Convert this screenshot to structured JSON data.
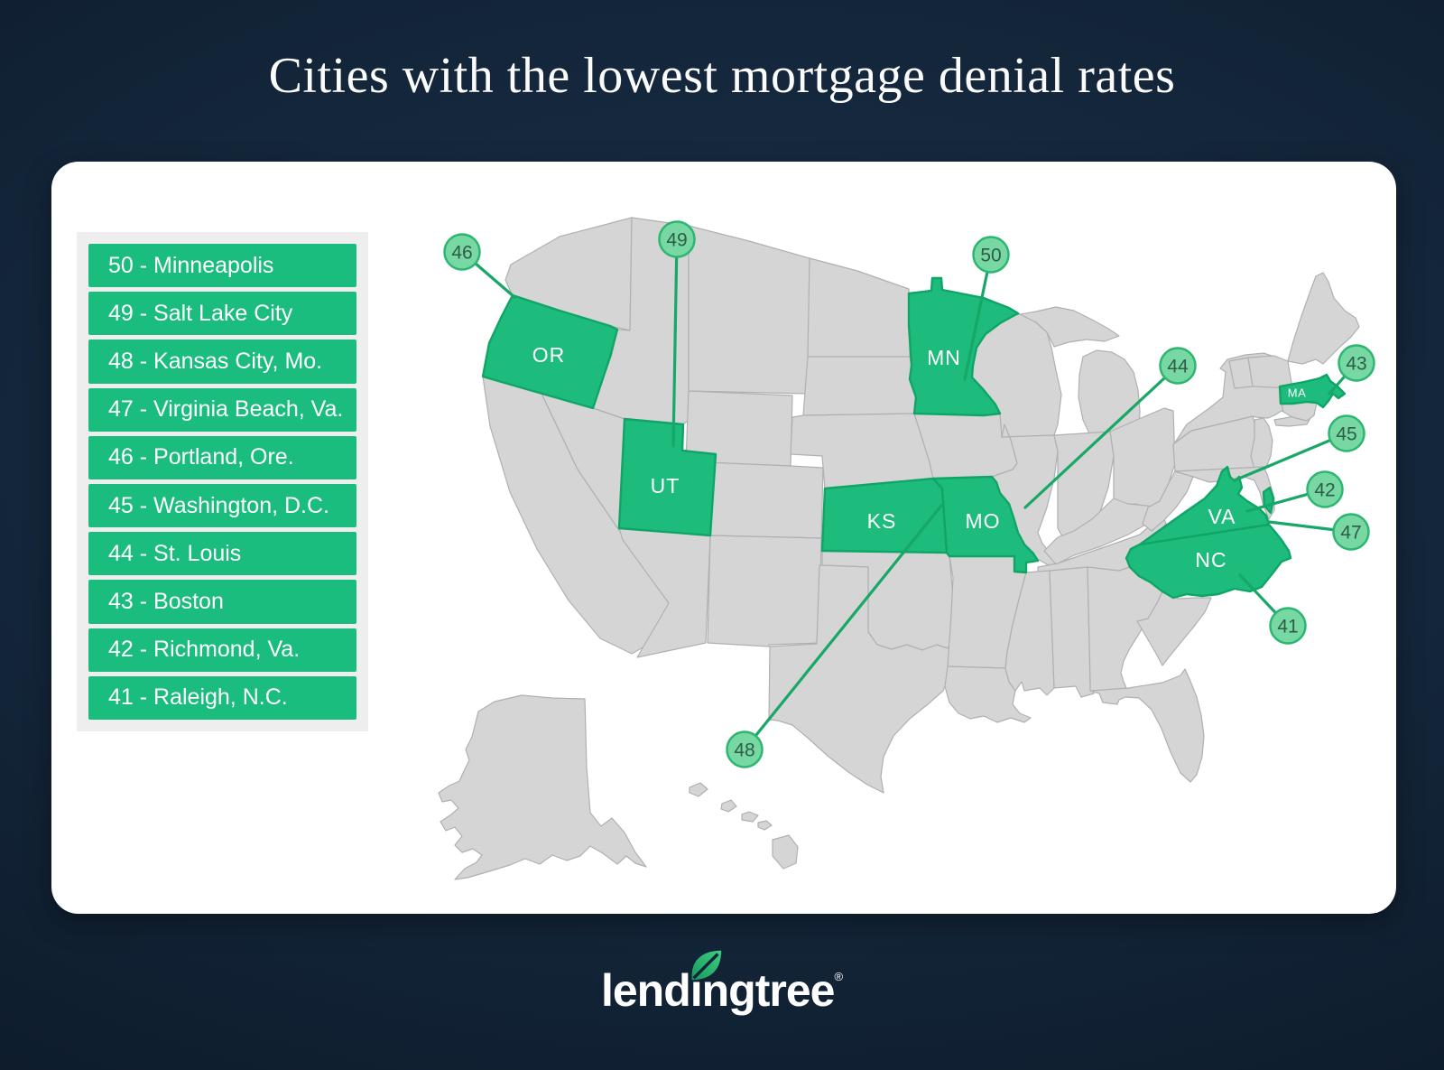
{
  "title": "Cities with the lowest mortgage denial rates",
  "panel": {
    "rankings": [
      {
        "rank": "50",
        "city": "Minneapolis"
      },
      {
        "rank": "49",
        "city": "Salt Lake City"
      },
      {
        "rank": "48",
        "city": "Kansas City, Mo."
      },
      {
        "rank": "47",
        "city": "Virginia Beach, Va."
      },
      {
        "rank": "46",
        "city": "Portland, Ore."
      },
      {
        "rank": "45",
        "city": "Washington, D.C."
      },
      {
        "rank": "44",
        "city": "St. Louis"
      },
      {
        "rank": "43",
        "city": "Boston"
      },
      {
        "rank": "42",
        "city": "Richmond, Va."
      },
      {
        "rank": "41",
        "city": "Raleigh, N.C."
      }
    ]
  },
  "map": {
    "state_labels": [
      {
        "code": "OR"
      },
      {
        "code": "UT"
      },
      {
        "code": "MN"
      },
      {
        "code": "KS"
      },
      {
        "code": "MO"
      },
      {
        "code": "MA"
      },
      {
        "code": "VA"
      },
      {
        "code": "NC"
      }
    ],
    "callouts": [
      {
        "number": "46"
      },
      {
        "number": "49"
      },
      {
        "number": "50"
      },
      {
        "number": "44"
      },
      {
        "number": "43"
      },
      {
        "number": "45"
      },
      {
        "number": "42"
      },
      {
        "number": "47"
      },
      {
        "number": "41"
      },
      {
        "number": "48"
      }
    ]
  },
  "logo": {
    "text": "lendingtree",
    "registered_mark": "®"
  },
  "colors": {
    "highlight_green": "#1dbc7c",
    "highlight_green_border": "#0fa566",
    "state_gray": "#d5d5d6",
    "callout_fill": "#77d8a3",
    "callout_border": "#2db671",
    "callout_text": "#2e5d47",
    "line_green": "#17a767",
    "list_row_green": "#1abd7d",
    "background_navy": "#0e1c2c",
    "card_white": "#ffffff"
  },
  "chart_data": {
    "type": "table",
    "title": "Cities with the lowest mortgage denial rates",
    "columns": [
      "rank",
      "city",
      "state_highlighted"
    ],
    "rows": [
      [
        50,
        "Minneapolis",
        "MN"
      ],
      [
        49,
        "Salt Lake City",
        "UT"
      ],
      [
        48,
        "Kansas City, Mo.",
        "MO"
      ],
      [
        47,
        "Virginia Beach, Va.",
        "VA"
      ],
      [
        46,
        "Portland, Ore.",
        "OR"
      ],
      [
        45,
        "Washington, D.C.",
        "VA"
      ],
      [
        44,
        "St. Louis",
        "MO"
      ],
      [
        43,
        "Boston",
        "MA"
      ],
      [
        42,
        "Richmond, Va.",
        "VA"
      ],
      [
        41,
        "Raleigh, N.C.",
        "NC"
      ]
    ]
  }
}
